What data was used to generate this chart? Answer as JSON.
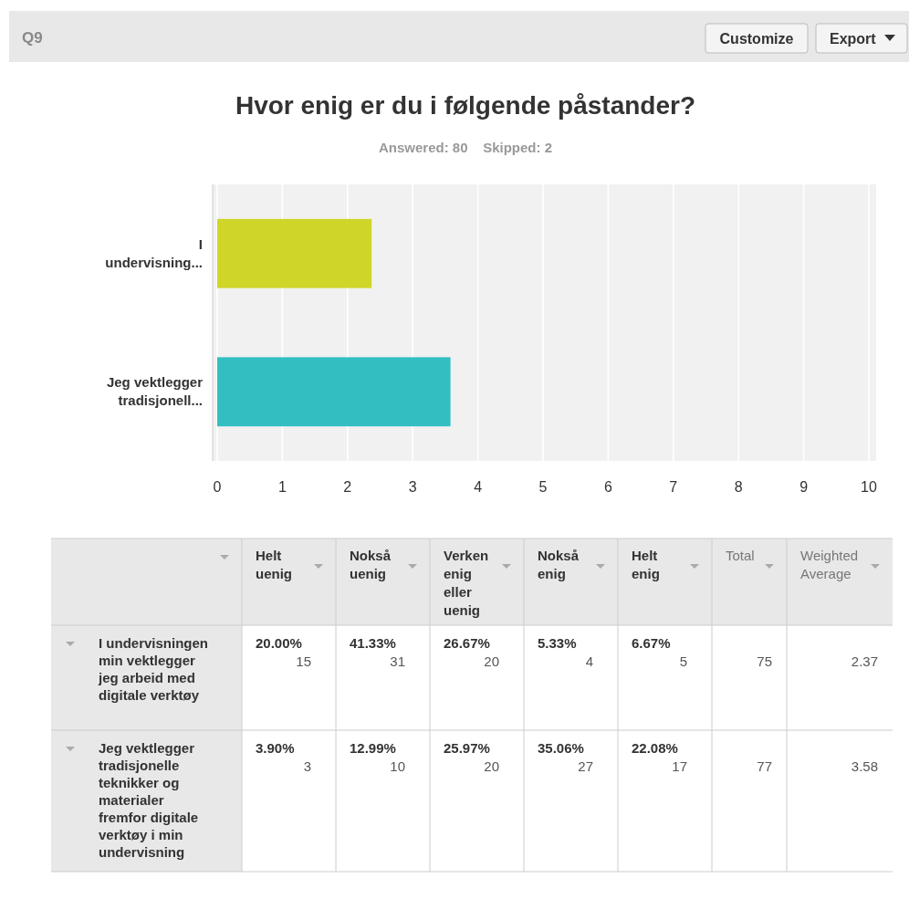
{
  "chart_data": [
    {
      "type": "bar",
      "orientation": "horizontal",
      "title": "Hvor enig er du i følgende påstander?",
      "subtitle": "Answered: 80    Skipped: 2",
      "annotations": [
        "Q9",
        "Customize",
        "Export"
      ],
      "categories": [
        "I undervisning...",
        "Jeg vektlegger tradisjonell..."
      ],
      "values": [
        2.37,
        3.58
      ],
      "colors": [
        "#cfd628",
        "#33bfc1"
      ],
      "xlim": [
        0,
        10
      ],
      "xticks": [
        0,
        1,
        2,
        3,
        4,
        5,
        6,
        7,
        8,
        9,
        10
      ],
      "grid": "x"
    },
    {
      "type": "other",
      "categories": [
        "Helt uenig",
        "Nokså uenig",
        "Verken enig eller uenig",
        "Nokså enig",
        "Helt enig",
        "Total",
        "Weighted Average"
      ],
      "y_categories": [
        "I undervisningen min vektlegger jeg arbeid med digitale verktøy",
        "Jeg vektlegger tradisjonelle teknikker og materialer fremfor digitale verktøy i min undervisning"
      ],
      "cell_labels": [
        [
          "20.00%\n15",
          "41.33%\n31",
          "26.67%\n20",
          "5.33%\n4",
          "6.67%\n5",
          "75",
          "2.37"
        ],
        [
          "3.90%\n3",
          "12.99%\n10",
          "25.97%\n20",
          "35.06%\n27",
          "22.08%\n17",
          "77",
          "3.58"
        ]
      ]
    }
  ]
}
